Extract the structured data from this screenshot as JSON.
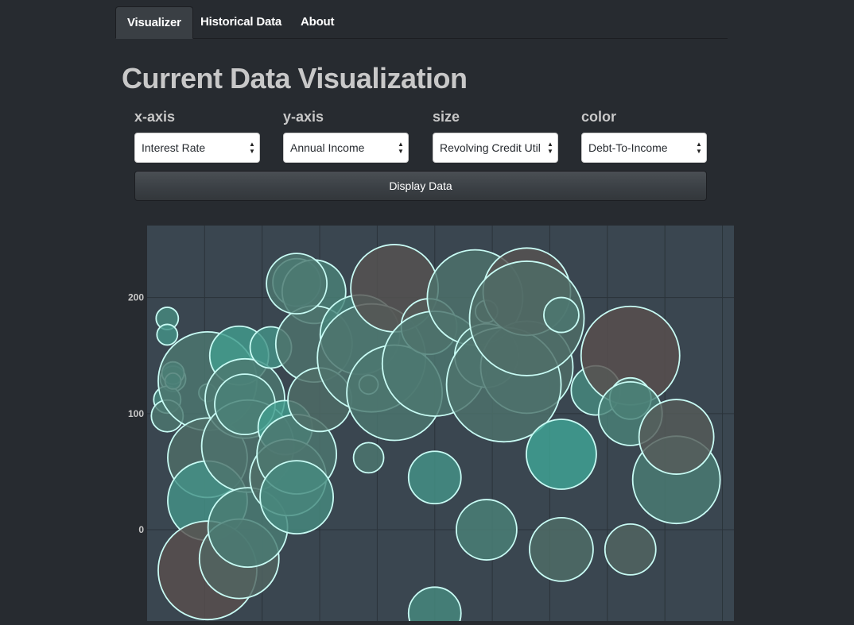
{
  "nav": {
    "tabs": [
      {
        "label": "Visualizer",
        "active": true
      },
      {
        "label": "Historical Data",
        "active": false
      },
      {
        "label": "About",
        "active": false
      }
    ]
  },
  "page_title": "Current Data Visualization",
  "controls": {
    "x_axis": {
      "label": "x-axis",
      "value": "Interest Rate"
    },
    "y_axis": {
      "label": "y-axis",
      "value": "Annual Income"
    },
    "size": {
      "label": "size",
      "value": "Revolving Credit Utilization"
    },
    "color": {
      "label": "color",
      "value": "Debt-To-Income"
    },
    "display_button": "Display Data"
  },
  "colors": {
    "background": "#272b30",
    "plot_background": "#3a4650",
    "bubble_stroke": "#c8fbf4",
    "color_low": "#3fa596",
    "color_high": "#5a4a4a"
  },
  "chart_data": {
    "type": "scatter",
    "xlabel": "",
    "ylabel": "",
    "y_ticks": [
      0,
      100,
      200
    ],
    "ylim": [
      -80,
      262
    ],
    "xlim": [
      0,
      10.2
    ],
    "grid": true,
    "points": [
      {
        "x": 0.35,
        "y": 182,
        "r": 14,
        "c": 0.3
      },
      {
        "x": 0.35,
        "y": 168,
        "r": 13,
        "c": 0.2
      },
      {
        "x": 0.45,
        "y": 130,
        "r": 16,
        "c": 0.4
      },
      {
        "x": 0.35,
        "y": 112,
        "r": 17,
        "c": 0.3
      },
      {
        "x": 0.35,
        "y": 98,
        "r": 20,
        "c": 0.5
      },
      {
        "x": 0.45,
        "y": 135,
        "r": 14,
        "c": 0.1
      },
      {
        "x": 0.45,
        "y": 128,
        "r": 10,
        "c": 0.0
      },
      {
        "x": 1.05,
        "y": 118,
        "r": 11,
        "c": 0.4
      },
      {
        "x": 1.05,
        "y": 128,
        "r": 62,
        "c": 0.5
      },
      {
        "x": 1.05,
        "y": 62,
        "r": 50,
        "c": 0.6
      },
      {
        "x": 1.05,
        "y": 25,
        "r": 50,
        "c": 0.2
      },
      {
        "x": 1.05,
        "y": -35,
        "r": 62,
        "c": 0.95
      },
      {
        "x": 1.6,
        "y": -25,
        "r": 50,
        "c": 0.7
      },
      {
        "x": 1.6,
        "y": 150,
        "r": 37,
        "c": 0.1
      },
      {
        "x": 1.7,
        "y": 113,
        "r": 50,
        "c": 0.5
      },
      {
        "x": 1.75,
        "y": 72,
        "r": 58,
        "c": 0.55
      },
      {
        "x": 1.75,
        "y": 2,
        "r": 50,
        "c": 0.45
      },
      {
        "x": 2.15,
        "y": 157,
        "r": 26,
        "c": 0.2
      },
      {
        "x": 1.7,
        "y": 108,
        "r": 38,
        "c": 0.4
      },
      {
        "x": 2.6,
        "y": 213,
        "r": 30,
        "c": 0.3
      },
      {
        "x": 2.9,
        "y": 205,
        "r": 40,
        "c": 0.4
      },
      {
        "x": 2.4,
        "y": 88,
        "r": 34,
        "c": 0.1
      },
      {
        "x": 2.45,
        "y": 45,
        "r": 48,
        "c": 0.6
      },
      {
        "x": 2.6,
        "y": 65,
        "r": 50,
        "c": 0.5
      },
      {
        "x": 2.6,
        "y": 28,
        "r": 46,
        "c": 0.3
      },
      {
        "x": 2.9,
        "y": 160,
        "r": 48,
        "c": 0.55
      },
      {
        "x": 3.0,
        "y": 112,
        "r": 40,
        "c": 0.6
      },
      {
        "x": 2.6,
        "y": 212,
        "r": 38,
        "c": 0.5
      },
      {
        "x": 3.7,
        "y": 168,
        "r": 50,
        "c": 0.35
      },
      {
        "x": 3.9,
        "y": 148,
        "r": 68,
        "c": 0.55
      },
      {
        "x": 3.85,
        "y": 125,
        "r": 12,
        "c": 0.6
      },
      {
        "x": 3.85,
        "y": 62,
        "r": 19,
        "c": 0.5
      },
      {
        "x": 4.3,
        "y": 208,
        "r": 55,
        "c": 0.9
      },
      {
        "x": 4.3,
        "y": 118,
        "r": 60,
        "c": 0.5
      },
      {
        "x": 4.9,
        "y": 175,
        "r": 35,
        "c": 0.8
      },
      {
        "x": 5.0,
        "y": 143,
        "r": 66,
        "c": 0.5
      },
      {
        "x": 5.0,
        "y": 45,
        "r": 33,
        "c": 0.2
      },
      {
        "x": 5.0,
        "y": -72,
        "r": 33,
        "c": 0.3
      },
      {
        "x": 5.7,
        "y": 200,
        "r": 60,
        "c": 0.55
      },
      {
        "x": 5.9,
        "y": 188,
        "r": 14,
        "c": 0.7
      },
      {
        "x": 5.9,
        "y": 150,
        "r": 40,
        "c": 0.5
      },
      {
        "x": 5.9,
        "y": 0,
        "r": 38,
        "c": 0.4
      },
      {
        "x": 6.6,
        "y": 140,
        "r": 58,
        "c": 0.6
      },
      {
        "x": 6.2,
        "y": 125,
        "r": 72,
        "c": 0.55
      },
      {
        "x": 6.6,
        "y": 205,
        "r": 55,
        "c": 0.9
      },
      {
        "x": 6.6,
        "y": 182,
        "r": 72,
        "c": 0.6
      },
      {
        "x": 7.2,
        "y": 185,
        "r": 22,
        "c": 0.5
      },
      {
        "x": 7.2,
        "y": 65,
        "r": 44,
        "c": 0.0
      },
      {
        "x": 7.2,
        "y": -17,
        "r": 40,
        "c": 0.6
      },
      {
        "x": 7.8,
        "y": 120,
        "r": 31,
        "c": 0.3
      },
      {
        "x": 8.4,
        "y": 150,
        "r": 62,
        "c": 0.95
      },
      {
        "x": 8.4,
        "y": 113,
        "r": 26,
        "c": 0.5
      },
      {
        "x": 8.4,
        "y": 100,
        "r": 40,
        "c": 0.4
      },
      {
        "x": 8.4,
        "y": -17,
        "r": 32,
        "c": 0.7
      },
      {
        "x": 9.2,
        "y": 43,
        "r": 55,
        "c": 0.45
      },
      {
        "x": 9.2,
        "y": 80,
        "r": 47,
        "c": 0.8
      }
    ]
  }
}
